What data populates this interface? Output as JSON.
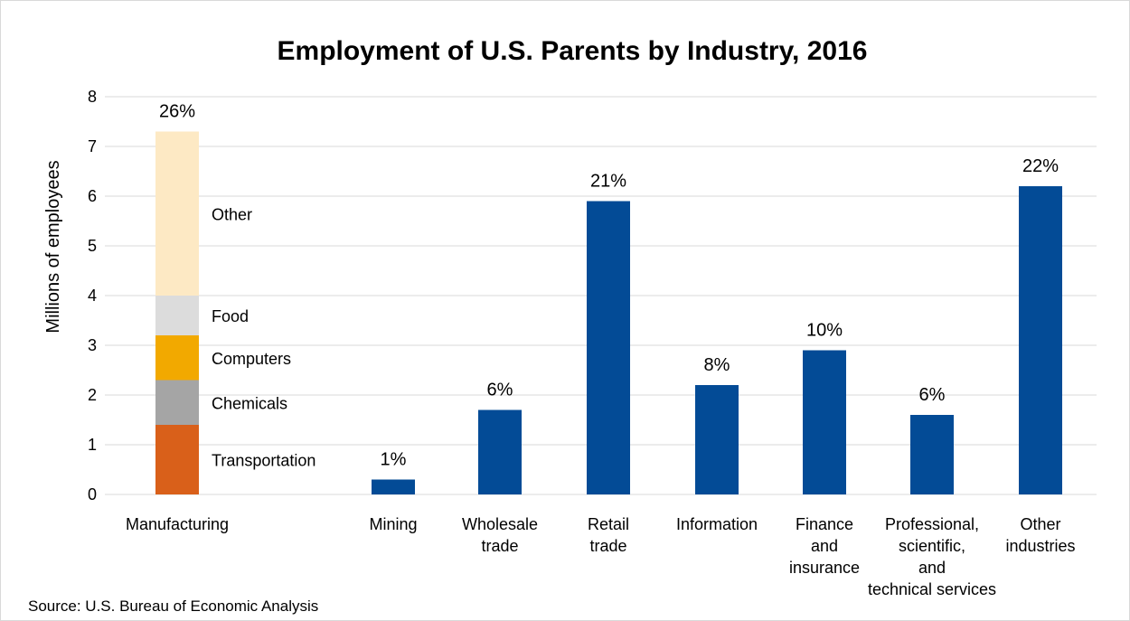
{
  "chart_data": {
    "type": "bar",
    "title": "Employment of U.S. Parents by Industry, 2016",
    "ylabel": "Millions of employees",
    "ylim": [
      0,
      8
    ],
    "yticks": [
      0,
      1,
      2,
      3,
      4,
      5,
      6,
      7,
      8
    ],
    "grid": true,
    "categories": [
      [
        "Manufacturing"
      ],
      [
        "Mining"
      ],
      [
        "Wholesale",
        "trade"
      ],
      [
        "Retail",
        "trade"
      ],
      [
        "Information"
      ],
      [
        "Finance",
        "and",
        "insurance"
      ],
      [
        "Professional,",
        "scientific,",
        "and",
        "technical services"
      ],
      [
        "Other",
        "industries"
      ]
    ],
    "values": [
      7.3,
      0.3,
      1.7,
      5.9,
      2.2,
      2.9,
      1.6,
      6.2
    ],
    "percent_labels": [
      "26%",
      "1%",
      "6%",
      "21%",
      "8%",
      "10%",
      "6%",
      "22%"
    ],
    "stacked_manufacturing": [
      {
        "name": "Transportation",
        "value": 1.4,
        "color": "#d9601a"
      },
      {
        "name": "Chemicals",
        "value": 0.9,
        "color": "#a5a5a5"
      },
      {
        "name": "Computers",
        "value": 0.9,
        "color": "#f2a900"
      },
      {
        "name": "Food",
        "value": 0.8,
        "color": "#dcdcdc"
      },
      {
        "name": "Other",
        "value": 3.3,
        "color": "#fde9c4"
      }
    ],
    "bar_color": "#034b96",
    "source": "Source: U.S. Bureau of Economic Analysis"
  }
}
